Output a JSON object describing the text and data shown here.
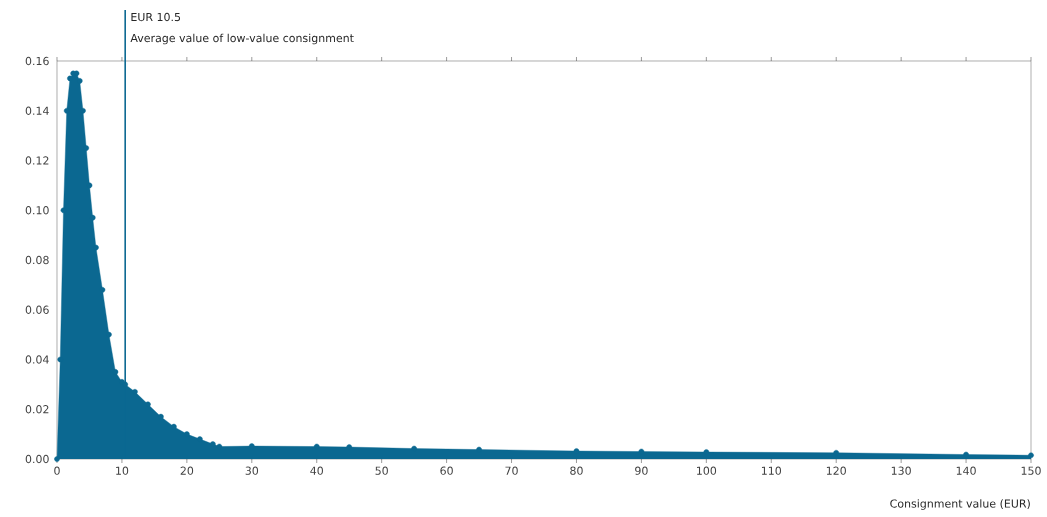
{
  "chart_data": {
    "type": "area",
    "xlabel": "Consignment value (EUR)",
    "x": [
      0,
      0.5,
      1,
      1.5,
      2,
      2.5,
      3,
      3.5,
      4,
      4.5,
      5,
      5.5,
      6,
      7,
      8,
      9,
      10,
      10.5,
      12,
      14,
      16,
      18,
      20,
      22,
      24,
      25,
      30,
      40,
      45,
      55,
      65,
      80,
      90,
      100,
      120,
      140,
      150
    ],
    "series": [
      {
        "color": "#0b6891",
        "values": [
          0,
          0.04,
          0.1,
          0.14,
          0.153,
          0.155,
          0.155,
          0.152,
          0.14,
          0.125,
          0.11,
          0.097,
          0.085,
          0.068,
          0.05,
          0.035,
          0.031,
          0.03,
          0.027,
          0.022,
          0.017,
          0.013,
          0.01,
          0.008,
          0.006,
          0.005,
          0.0052,
          0.005,
          0.0048,
          0.0042,
          0.0038,
          0.0032,
          0.003,
          0.0028,
          0.0025,
          0.0018,
          0.0015
        ]
      }
    ],
    "xlim": [
      0,
      150
    ],
    "ylim": [
      0,
      0.16
    ],
    "xticks": [
      0,
      10,
      20,
      30,
      40,
      50,
      60,
      70,
      80,
      90,
      100,
      110,
      120,
      130,
      140,
      150
    ],
    "yticks": [
      {
        "value": 0,
        "label": "0.00"
      },
      {
        "value": 0.02,
        "label": "0.02"
      },
      {
        "value": 0.04,
        "label": "0.04"
      },
      {
        "value": 0.06,
        "label": "0.06"
      },
      {
        "value": 0.08,
        "label": "0.08"
      },
      {
        "value": 0.1,
        "label": "0.10"
      },
      {
        "value": 0.12,
        "label": "0.12"
      },
      {
        "value": 0.14,
        "label": "0.14"
      },
      {
        "value": 0.16,
        "label": "0.16"
      }
    ],
    "ref_lines": [
      {
        "axis": "x",
        "value": 10.5,
        "label": "EUR 10.5"
      }
    ],
    "annotations": [
      "Average value of low-value consignment"
    ],
    "marker": "circle",
    "grid": false
  }
}
